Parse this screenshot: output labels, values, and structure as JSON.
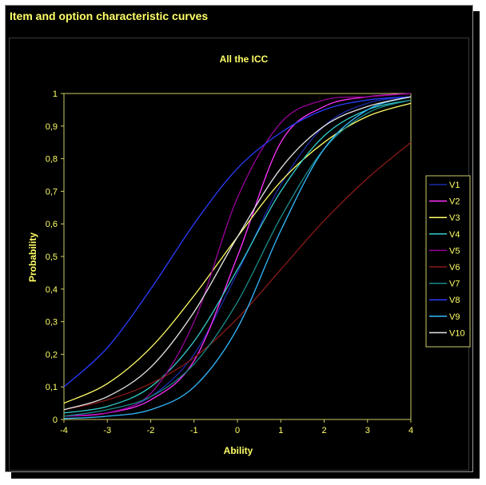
{
  "window": {
    "title": "Item and option characteristic curves"
  },
  "chart_data": {
    "type": "line",
    "title": "All the ICC",
    "xlabel": "Ability",
    "ylabel": "Probability",
    "xlim": [
      -4,
      4
    ],
    "ylim": [
      0,
      1
    ],
    "xticks": [
      "-4",
      "-3",
      "-2",
      "-1",
      "0",
      "1",
      "2",
      "3",
      "4"
    ],
    "yticks": [
      "0",
      "0,1",
      "0,2",
      "0,3",
      "0,4",
      "0,5",
      "0,6",
      "0,7",
      "0,8",
      "0,9",
      "1"
    ],
    "grid": false,
    "legend_position": "right",
    "series": [
      {
        "name": "V1",
        "color": "#1a2aa8",
        "points": [
          [
            -4,
            0.01
          ],
          [
            -3,
            0.02
          ],
          [
            -2,
            0.07
          ],
          [
            -1,
            0.2
          ],
          [
            0,
            0.45
          ],
          [
            1,
            0.72
          ],
          [
            2,
            0.9
          ],
          [
            3,
            0.97
          ],
          [
            4,
            0.99
          ]
        ]
      },
      {
        "name": "V2",
        "color": "#ff33ff",
        "points": [
          [
            -4,
            0.01
          ],
          [
            -3,
            0.02
          ],
          [
            -2,
            0.06
          ],
          [
            -1,
            0.18
          ],
          [
            0,
            0.5
          ],
          [
            1,
            0.85
          ],
          [
            2,
            0.96
          ],
          [
            3,
            0.99
          ],
          [
            4,
            1.0
          ]
        ]
      },
      {
        "name": "V3",
        "color": "#ffff66",
        "points": [
          [
            -4,
            0.05
          ],
          [
            -3,
            0.11
          ],
          [
            -2,
            0.22
          ],
          [
            -1,
            0.38
          ],
          [
            0,
            0.56
          ],
          [
            1,
            0.73
          ],
          [
            2,
            0.85
          ],
          [
            3,
            0.93
          ],
          [
            4,
            0.97
          ]
        ]
      },
      {
        "name": "V4",
        "color": "#33cccc",
        "points": [
          [
            -4,
            0.02
          ],
          [
            -3,
            0.04
          ],
          [
            -2,
            0.1
          ],
          [
            -1,
            0.24
          ],
          [
            0,
            0.46
          ],
          [
            1,
            0.7
          ],
          [
            2,
            0.87
          ],
          [
            3,
            0.95
          ],
          [
            4,
            0.98
          ]
        ]
      },
      {
        "name": "V5",
        "color": "#990099",
        "points": [
          [
            -4,
            0.01
          ],
          [
            -3,
            0.02
          ],
          [
            -2,
            0.08
          ],
          [
            -1,
            0.3
          ],
          [
            0,
            0.68
          ],
          [
            1,
            0.91
          ],
          [
            2,
            0.98
          ],
          [
            3,
            0.99
          ],
          [
            4,
            1.0
          ]
        ]
      },
      {
        "name": "V6",
        "color": "#8b1a1a",
        "points": [
          [
            -4,
            0.03
          ],
          [
            -3,
            0.06
          ],
          [
            -2,
            0.11
          ],
          [
            -1,
            0.19
          ],
          [
            0,
            0.31
          ],
          [
            1,
            0.46
          ],
          [
            2,
            0.61
          ],
          [
            3,
            0.74
          ],
          [
            4,
            0.85
          ]
        ]
      },
      {
        "name": "V7",
        "color": "#1a8a8a",
        "points": [
          [
            -4,
            0.01
          ],
          [
            -3,
            0.03
          ],
          [
            -2,
            0.07
          ],
          [
            -1,
            0.17
          ],
          [
            0,
            0.36
          ],
          [
            1,
            0.62
          ],
          [
            2,
            0.83
          ],
          [
            3,
            0.94
          ],
          [
            4,
            0.98
          ]
        ]
      },
      {
        "name": "V8",
        "color": "#2b3cff",
        "points": [
          [
            -4,
            0.1
          ],
          [
            -3,
            0.22
          ],
          [
            -2,
            0.4
          ],
          [
            -1,
            0.6
          ],
          [
            0,
            0.77
          ],
          [
            1,
            0.88
          ],
          [
            2,
            0.95
          ],
          [
            3,
            0.98
          ],
          [
            4,
            0.99
          ]
        ]
      },
      {
        "name": "V9",
        "color": "#33bbff",
        "points": [
          [
            -4,
            0.003
          ],
          [
            -3,
            0.01
          ],
          [
            -2,
            0.03
          ],
          [
            -1,
            0.1
          ],
          [
            0,
            0.28
          ],
          [
            1,
            0.58
          ],
          [
            2,
            0.83
          ],
          [
            3,
            0.95
          ],
          [
            4,
            0.99
          ]
        ]
      },
      {
        "name": "V10",
        "color": "#e6e6e6",
        "points": [
          [
            -4,
            0.03
          ],
          [
            -3,
            0.07
          ],
          [
            -2,
            0.16
          ],
          [
            -1,
            0.33
          ],
          [
            0,
            0.56
          ],
          [
            1,
            0.77
          ],
          [
            2,
            0.9
          ],
          [
            3,
            0.96
          ],
          [
            4,
            0.99
          ]
        ]
      }
    ]
  }
}
